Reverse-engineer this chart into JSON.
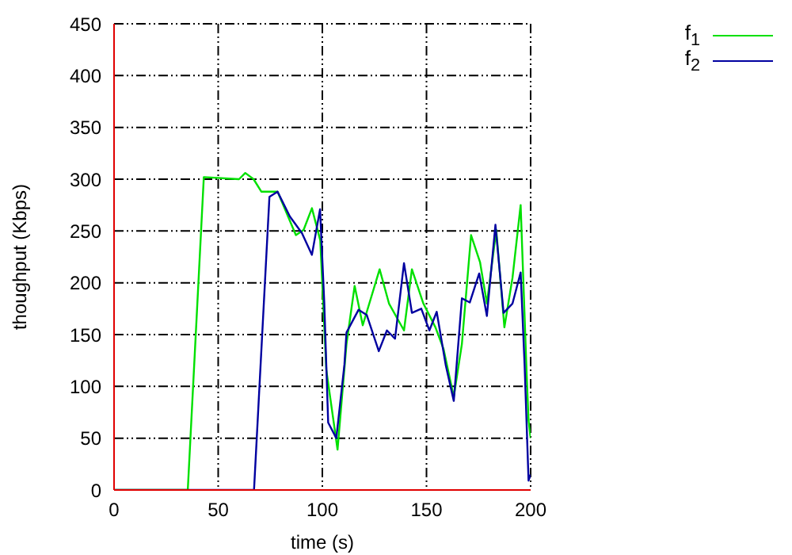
{
  "chart_data": {
    "type": "line",
    "xlabel": "time (s)",
    "ylabel": "thoughput (Kbps)",
    "xlim": [
      0,
      200
    ],
    "xticks": [
      0,
      50,
      100,
      150,
      200
    ],
    "ylim": [
      0,
      450
    ],
    "yticks": [
      0,
      50,
      100,
      150,
      200,
      250,
      300,
      350,
      400,
      450
    ],
    "grid": true,
    "legend": "top right",
    "marker": "none",
    "line_style": "solid",
    "series": [
      {
        "name": "f$_{1}$",
        "color": "#00e000",
        "x": [
          0,
          35.4,
          43.1,
          60,
          63,
          67,
          70.7,
          78.5,
          87.3,
          91,
          95,
          99,
          101.9,
          107.3,
          111.6,
          115.5,
          119.4,
          127.5,
          132,
          139.2,
          143,
          148.5,
          154.3,
          158.2,
          163.1,
          167,
          171.4,
          175.7,
          179,
          183.5,
          187.4,
          191.3,
          195.2,
          198.1,
          199,
          200
        ],
        "values": [
          0,
          0,
          302,
          300,
          306,
          300,
          288,
          288,
          246,
          251,
          272,
          241,
          116,
          39,
          141,
          197,
          159,
          213,
          180,
          154,
          213,
          180,
          157,
          136,
          90,
          141,
          246,
          220,
          180,
          251,
          157,
          205,
          275,
          111,
          67,
          50
        ]
      },
      {
        "name": "f$_{2}$",
        "color": "#0000a0",
        "x": [
          0,
          67.2,
          74.6,
          78.5,
          84.4,
          90.2,
          95,
          98.9,
          100.9,
          102.8,
          106.7,
          110.6,
          111.6,
          117.4,
          121.3,
          127.1,
          131,
          134.9,
          139.2,
          143,
          147.5,
          151.4,
          154.9,
          159.2,
          163.1,
          167,
          170.8,
          175.3,
          179,
          183.1,
          187,
          191.3,
          195.2,
          197.1,
          199,
          200
        ],
        "values": [
          0,
          0,
          283,
          288,
          264,
          248,
          227,
          271,
          182,
          65,
          50,
          121,
          152,
          174,
          169,
          134,
          154,
          146,
          219,
          171,
          175,
          154,
          172,
          121,
          86,
          185,
          181,
          209,
          168,
          256,
          171,
          180,
          210,
          121,
          9,
          15
        ]
      }
    ]
  }
}
